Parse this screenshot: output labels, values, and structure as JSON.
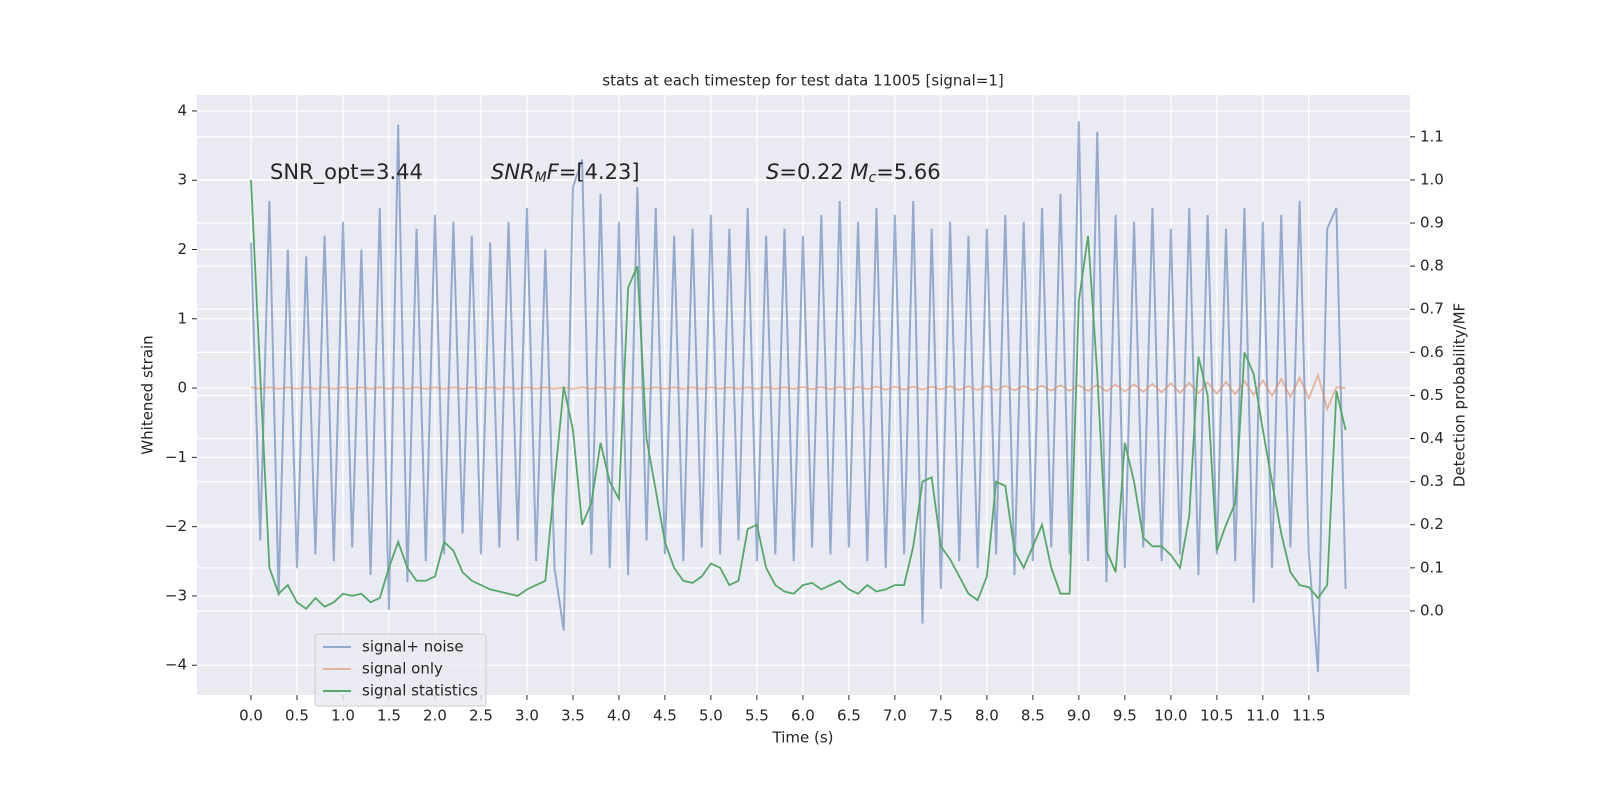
{
  "chart_data": {
    "type": "line",
    "title": "stats at each timestep for test data 11005 [signal=1]",
    "xlabel": "Time (s)",
    "ylabel": "Whitened strain",
    "y2label": "Detection probability/MF",
    "annotations": [
      [
        {
          "text": "SNR_opt=3.44",
          "style": "normal"
        }
      ],
      [
        {
          "text": "SNR",
          "style": "italic"
        },
        {
          "text": "M",
          "style": "italic-sub"
        },
        {
          "text": "F",
          "style": "italic"
        },
        {
          "text": "=[4.23]",
          "style": "normal"
        }
      ],
      [
        {
          "text": "S",
          "style": "italic"
        },
        {
          "text": "=0.22   ",
          "style": "normal"
        },
        {
          "text": "M",
          "style": "italic"
        },
        {
          "text": "c",
          "style": "italic-sub"
        },
        {
          "text": "=5.66",
          "style": "normal"
        }
      ]
    ],
    "x": [
      0,
      0.1,
      0.2,
      0.3,
      0.4,
      0.5,
      0.6,
      0.7,
      0.8,
      0.9,
      1,
      1.1,
      1.2,
      1.3,
      1.4,
      1.5,
      1.6,
      1.7,
      1.8,
      1.9,
      2,
      2.1,
      2.2,
      2.3,
      2.4,
      2.5,
      2.6,
      2.7,
      2.8,
      2.9,
      3,
      3.1,
      3.2,
      3.3,
      3.4,
      3.5,
      3.6,
      3.7,
      3.8,
      3.9,
      4,
      4.1,
      4.2,
      4.3,
      4.4,
      4.5,
      4.6,
      4.7,
      4.8,
      4.9,
      5,
      5.1,
      5.2,
      5.3,
      5.4,
      5.5,
      5.6,
      5.7,
      5.8,
      5.9,
      6,
      6.1,
      6.2,
      6.3,
      6.4,
      6.5,
      6.6,
      6.7,
      6.8,
      6.9,
      7,
      7.1,
      7.2,
      7.3,
      7.4,
      7.5,
      7.6,
      7.7,
      7.8,
      7.9,
      8,
      8.1,
      8.2,
      8.3,
      8.4,
      8.5,
      8.6,
      8.7,
      8.8,
      8.9,
      9,
      9.1,
      9.2,
      9.3,
      9.4,
      9.5,
      9.6,
      9.7,
      9.8,
      9.9,
      10,
      10.1,
      10.2,
      10.3,
      10.4,
      10.5,
      10.6,
      10.7,
      10.8,
      10.9,
      11,
      11.1,
      11.2,
      11.3,
      11.4,
      11.5,
      11.6,
      11.7,
      11.8,
      11.9
    ],
    "series": [
      {
        "name": "signal+ noise",
        "color": "#4c72b0",
        "axis": "y",
        "values": [
          2.1,
          -2.2,
          2.7,
          -3.0,
          2.0,
          -2.6,
          1.9,
          -2.4,
          2.2,
          -2.5,
          2.4,
          -2.3,
          2.0,
          -2.7,
          2.6,
          -3.2,
          3.8,
          -2.8,
          2.3,
          -2.5,
          2.5,
          -2.4,
          2.4,
          -2.1,
          2.2,
          -2.4,
          2.1,
          -2.3,
          2.4,
          -2.2,
          2.6,
          -2.5,
          2.0,
          -2.6,
          -3.5,
          2.9,
          3.3,
          -2.4,
          2.8,
          -2.6,
          2.4,
          -2.7,
          2.9,
          -2.2,
          2.6,
          -2.4,
          2.2,
          -2.5,
          2.3,
          -2.3,
          2.5,
          -2.4,
          2.3,
          -2.2,
          2.6,
          -2.5,
          2.2,
          -2.4,
          2.3,
          -2.5,
          2.2,
          -2.3,
          2.5,
          -2.4,
          2.7,
          -2.3,
          2.4,
          -2.5,
          2.6,
          -2.6,
          2.5,
          -2.4,
          2.7,
          -3.4,
          2.3,
          -2.9,
          2.4,
          -2.5,
          2.2,
          -2.6,
          2.3,
          -2.4,
          2.5,
          -2.7,
          2.4,
          -2.5,
          2.6,
          -2.3,
          2.8,
          -2.4,
          3.85,
          -2.5,
          3.7,
          -2.8,
          2.5,
          -2.6,
          2.4,
          -2.3,
          2.6,
          -2.5,
          2.3,
          -2.4,
          2.6,
          -2.7,
          2.5,
          -2.4,
          2.3,
          -2.5,
          2.6,
          -3.1,
          2.4,
          -2.6,
          2.5,
          -2.3,
          2.7,
          -2.4,
          -4.1,
          2.3,
          2.6,
          -2.9
        ]
      },
      {
        "name": "signal only",
        "color": "#dd8452",
        "axis": "y",
        "values": [
          0.01,
          -0.01,
          0.01,
          -0.01,
          0.01,
          -0.01,
          0.01,
          -0.01,
          0.01,
          -0.01,
          0.01,
          -0.01,
          0.01,
          -0.01,
          0.01,
          -0.01,
          0.01,
          -0.01,
          0.01,
          -0.01,
          0.01,
          -0.01,
          0.01,
          -0.01,
          0.01,
          -0.01,
          0.01,
          -0.01,
          0.01,
          -0.01,
          0.01,
          -0.01,
          0.01,
          -0.01,
          0.01,
          -0.01,
          0.01,
          -0.01,
          0.01,
          -0.01,
          0.01,
          -0.01,
          0.01,
          -0.01,
          0.01,
          -0.01,
          0.01,
          -0.01,
          0.01,
          -0.01,
          0.01,
          -0.01,
          0.01,
          -0.01,
          0.01,
          -0.01,
          0.01,
          -0.01,
          0.01,
          -0.01,
          0.015,
          -0.015,
          0.015,
          -0.015,
          0.015,
          -0.015,
          0.015,
          -0.015,
          0.02,
          -0.02,
          0.02,
          -0.02,
          0.02,
          -0.02,
          0.02,
          -0.02,
          0.025,
          -0.025,
          0.025,
          -0.025,
          0.03,
          -0.03,
          0.03,
          -0.03,
          0.03,
          -0.03,
          0.035,
          -0.035,
          0.04,
          -0.04,
          0.04,
          -0.04,
          0.045,
          -0.045,
          0.05,
          -0.05,
          0.055,
          -0.055,
          0.06,
          -0.06,
          0.07,
          -0.07,
          0.075,
          -0.075,
          0.08,
          -0.08,
          0.09,
          -0.09,
          0.1,
          -0.1,
          0.11,
          -0.11,
          0.13,
          -0.13,
          0.15,
          -0.15,
          0.19,
          -0.3,
          0.01,
          0
        ]
      },
      {
        "name": "signal statistics",
        "color": "#55a868",
        "axis": "y2",
        "values": [
          1.0,
          0.55,
          0.1,
          0.04,
          0.06,
          0.02,
          0.005,
          0.03,
          0.01,
          0.02,
          0.04,
          0.035,
          0.04,
          0.02,
          0.03,
          0.1,
          0.16,
          0.1,
          0.07,
          0.07,
          0.08,
          0.16,
          0.14,
          0.09,
          0.07,
          0.06,
          0.05,
          0.045,
          0.04,
          0.035,
          0.05,
          0.06,
          0.07,
          0.3,
          0.52,
          0.42,
          0.2,
          0.25,
          0.39,
          0.3,
          0.26,
          0.75,
          0.8,
          0.4,
          0.28,
          0.16,
          0.1,
          0.07,
          0.065,
          0.08,
          0.11,
          0.1,
          0.06,
          0.07,
          0.19,
          0.2,
          0.1,
          0.06,
          0.045,
          0.04,
          0.06,
          0.065,
          0.05,
          0.06,
          0.07,
          0.05,
          0.04,
          0.06,
          0.045,
          0.05,
          0.06,
          0.06,
          0.15,
          0.3,
          0.31,
          0.15,
          0.12,
          0.08,
          0.04,
          0.025,
          0.08,
          0.3,
          0.29,
          0.14,
          0.1,
          0.15,
          0.2,
          0.1,
          0.04,
          0.04,
          0.72,
          0.87,
          0.55,
          0.14,
          0.09,
          0.39,
          0.3,
          0.17,
          0.15,
          0.15,
          0.13,
          0.1,
          0.22,
          0.59,
          0.5,
          0.14,
          0.2,
          0.25,
          0.6,
          0.55,
          0.42,
          0.3,
          0.18,
          0.09,
          0.06,
          0.055,
          0.03,
          0.06,
          0.51,
          0.42
        ]
      }
    ],
    "xlim": [
      -0.587,
      12.6
    ],
    "xticks": [
      {
        "value": 0,
        "label": "0.0"
      },
      {
        "value": 0.5,
        "label": "0.5"
      },
      {
        "value": 1,
        "label": "1.0"
      },
      {
        "value": 1.5,
        "label": "1.5"
      },
      {
        "value": 2,
        "label": "2.0"
      },
      {
        "value": 2.5,
        "label": "2.5"
      },
      {
        "value": 3,
        "label": "3.0"
      },
      {
        "value": 3.5,
        "label": "3.5"
      },
      {
        "value": 4,
        "label": "4.0"
      },
      {
        "value": 4.5,
        "label": "4.5"
      },
      {
        "value": 5,
        "label": "5.0"
      },
      {
        "value": 5.5,
        "label": "5.5"
      },
      {
        "value": 6,
        "label": "6.0"
      },
      {
        "value": 6.5,
        "label": "6.5"
      },
      {
        "value": 7,
        "label": "7.0"
      },
      {
        "value": 7.5,
        "label": "7.5"
      },
      {
        "value": 8,
        "label": "8.0"
      },
      {
        "value": 8.5,
        "label": "8.5"
      },
      {
        "value": 9,
        "label": "9.0"
      },
      {
        "value": 9.5,
        "label": "9.5"
      },
      {
        "value": 10,
        "label": "10.0"
      },
      {
        "value": 10.5,
        "label": "10.5"
      },
      {
        "value": 11,
        "label": "11.0"
      },
      {
        "value": 11.5,
        "label": "11.5"
      }
    ],
    "ylim": [
      -4.43,
      4.23
    ],
    "yticks": [
      {
        "value": -4,
        "label": "−4"
      },
      {
        "value": -3,
        "label": "−3"
      },
      {
        "value": -2,
        "label": "−2"
      },
      {
        "value": -1,
        "label": "−1"
      },
      0,
      1,
      2,
      3,
      4
    ],
    "y2lim": [
      -0.195,
      1.197
    ],
    "y2ticks": [
      {
        "value": 0,
        "label": "0.0"
      },
      {
        "value": 0.1,
        "label": "0.1"
      },
      {
        "value": 0.2,
        "label": "0.2"
      },
      {
        "value": 0.3,
        "label": "0.3"
      },
      {
        "value": 0.4,
        "label": "0.4"
      },
      {
        "value": 0.5,
        "label": "0.5"
      },
      {
        "value": 0.6,
        "label": "0.6"
      },
      {
        "value": 0.7,
        "label": "0.7"
      },
      {
        "value": 0.8,
        "label": "0.8"
      },
      {
        "value": 0.9,
        "label": "0.9"
      },
      {
        "value": 1,
        "label": "1.0"
      },
      {
        "value": 1.1,
        "label": "1.1"
      }
    ],
    "grid": true,
    "legend": "lower left"
  }
}
